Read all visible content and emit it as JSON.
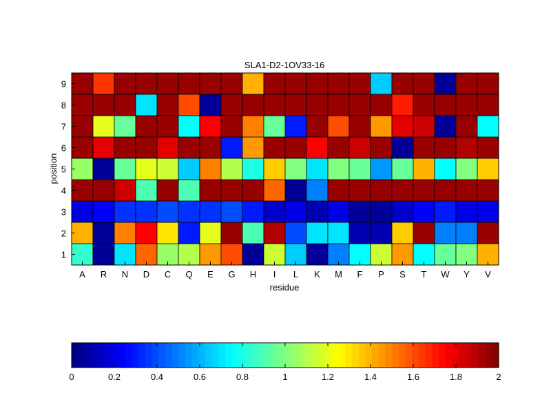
{
  "chart_data": {
    "type": "heatmap",
    "title": "SLA1-D2-1OV33-16",
    "xlabel": "residue",
    "ylabel": "position",
    "x": [
      "A",
      "R",
      "N",
      "D",
      "C",
      "Q",
      "E",
      "G",
      "H",
      "I",
      "L",
      "K",
      "M",
      "F",
      "P",
      "S",
      "T",
      "W",
      "Y",
      "V"
    ],
    "y": [
      "1",
      "2",
      "3",
      "4",
      "5",
      "6",
      "7",
      "8",
      "9"
    ],
    "values": [
      [
        0.85,
        0.05,
        0.7,
        1.55,
        1.05,
        1.1,
        1.45,
        1.6,
        0.05,
        1.15,
        0.65,
        0.05,
        0.5,
        0.75,
        1.15,
        1.45,
        0.75,
        0.95,
        1.0,
        1.4
      ],
      [
        1.4,
        0.05,
        1.5,
        1.75,
        1.3,
        0.3,
        1.2,
        1.95,
        0.9,
        1.9,
        0.4,
        0.7,
        0.7,
        0.1,
        0.1,
        1.35,
        1.95,
        0.5,
        0.5,
        1.95
      ],
      [
        0.2,
        0.25,
        0.35,
        0.35,
        0.4,
        0.35,
        0.35,
        0.4,
        0.3,
        0.15,
        0.2,
        0.1,
        0.2,
        0.05,
        0.05,
        0.15,
        0.25,
        0.3,
        0.2,
        0.2
      ],
      [
        1.95,
        1.95,
        1.85,
        0.9,
        1.95,
        0.9,
        1.95,
        1.95,
        1.95,
        1.55,
        0.05,
        0.5,
        1.95,
        1.95,
        1.95,
        1.95,
        1.95,
        1.95,
        1.95,
        1.95
      ],
      [
        1.05,
        0.05,
        0.95,
        1.2,
        1.15,
        0.65,
        1.5,
        1.1,
        0.8,
        1.35,
        1.0,
        0.7,
        1.0,
        0.95,
        0.55,
        0.95,
        1.4,
        0.75,
        1.0,
        1.35
      ],
      [
        1.95,
        1.8,
        1.95,
        1.95,
        1.8,
        1.95,
        1.95,
        0.3,
        1.45,
        1.95,
        1.95,
        1.75,
        1.95,
        1.85,
        1.95,
        0.05,
        1.95,
        1.95,
        1.9,
        1.95
      ],
      [
        1.95,
        1.2,
        0.95,
        1.95,
        1.95,
        0.75,
        1.75,
        1.95,
        1.5,
        0.95,
        0.3,
        1.95,
        1.6,
        1.95,
        1.45,
        1.8,
        1.85,
        0.05,
        1.95,
        0.75
      ],
      [
        1.95,
        1.95,
        1.95,
        0.7,
        1.95,
        1.6,
        0.05,
        1.95,
        1.95,
        1.95,
        1.95,
        1.95,
        1.95,
        1.95,
        1.95,
        1.7,
        1.95,
        1.95,
        1.95,
        1.95
      ],
      [
        1.95,
        1.65,
        1.95,
        1.95,
        1.95,
        1.95,
        1.95,
        1.95,
        1.4,
        1.95,
        1.95,
        1.95,
        1.95,
        1.95,
        0.65,
        1.95,
        1.95,
        0.05,
        1.95,
        1.95
      ]
    ],
    "colorbar": {
      "range": [
        0,
        2
      ],
      "ticks": [
        "0",
        "0.2",
        "0.4",
        "0.6",
        "0.8",
        "1",
        "1.2",
        "1.4",
        "1.6",
        "1.8",
        "2"
      ],
      "colormap": "jet",
      "placement": "bottom"
    },
    "grid": false
  }
}
